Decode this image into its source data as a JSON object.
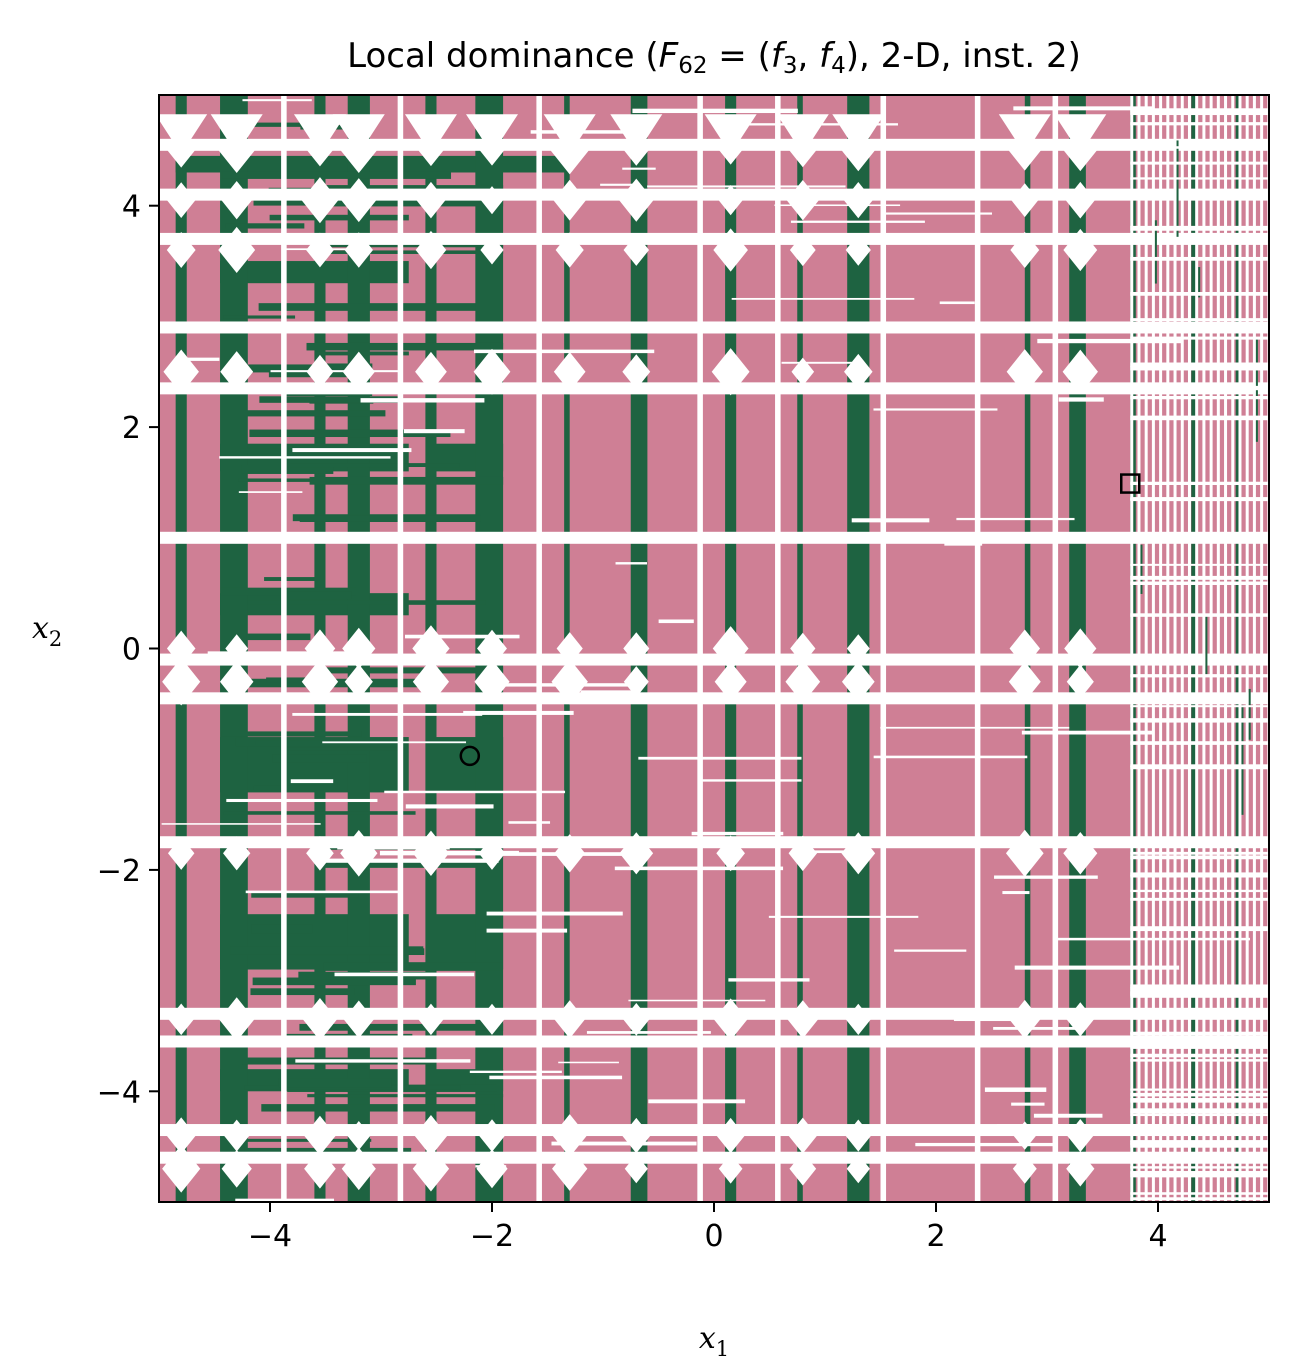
{
  "chart_data": {
    "type": "heatmap",
    "title": {
      "prefix": "Local dominance (",
      "F": "F",
      "F_sub": "62",
      "eq": " = (",
      "f1": "f",
      "f1_sub": "3",
      "comma": ", ",
      "f2": "f",
      "f2_sub": "4",
      "suffix": "), 2-D, inst. 2)"
    },
    "xlabel": {
      "main": "x",
      "sub": "1"
    },
    "ylabel": {
      "main": "x",
      "sub": "2"
    },
    "xlim": [
      -5,
      5
    ],
    "ylim": [
      -5,
      5
    ],
    "xticks": [
      {
        "value": -4,
        "label": "−4"
      },
      {
        "value": -2,
        "label": "−2"
      },
      {
        "value": 0,
        "label": "0"
      },
      {
        "value": 2,
        "label": "2"
      },
      {
        "value": 4,
        "label": "4"
      }
    ],
    "yticks": [
      {
        "value": -4,
        "label": "−4"
      },
      {
        "value": -2,
        "label": "−2"
      },
      {
        "value": 0,
        "label": "0"
      },
      {
        "value": 2,
        "label": "2"
      },
      {
        "value": 4,
        "label": "4"
      }
    ],
    "colors": {
      "background_region": "#cf7f95",
      "local_optimum_region": "#1e6341",
      "gap": "#ffffff",
      "frame": "#000000"
    },
    "green_columns": [
      [
        -4.85,
        -4.75
      ],
      [
        -4.45,
        -4.2
      ],
      [
        -3.6,
        -3.5
      ],
      [
        -3.3,
        -3.1
      ],
      [
        -2.6,
        -2.5
      ],
      [
        -2.15,
        -1.9
      ],
      [
        -1.35,
        -1.3
      ],
      [
        -0.75,
        -0.6
      ],
      [
        0.1,
        0.2
      ],
      [
        0.75,
        0.8
      ],
      [
        1.2,
        1.4
      ],
      [
        2.8,
        2.85
      ],
      [
        3.2,
        3.35
      ],
      [
        3.75,
        3.8
      ],
      [
        4.3,
        4.35
      ],
      [
        4.7,
        4.75
      ]
    ],
    "green_blocks": [
      [
        -4.45,
        -2.75,
        1.6,
        1.85
      ],
      [
        -4.45,
        -2.75,
        -1.3,
        -0.8
      ],
      [
        -4.45,
        -2.75,
        -2.9,
        -2.4
      ],
      [
        -4.45,
        -2.75,
        -4.0,
        -3.8
      ],
      [
        -4.45,
        -2.75,
        3.3,
        3.5
      ],
      [
        -4.45,
        -2.75,
        0.3,
        0.5
      ],
      [
        -2.55,
        -1.9,
        1.6,
        1.85
      ],
      [
        -2.55,
        -1.9,
        -1.3,
        -0.8
      ],
      [
        -2.55,
        -1.9,
        -2.9,
        -2.4
      ],
      [
        -4.85,
        -1.3,
        4.3,
        4.45
      ],
      [
        -2.55,
        -1.9,
        -4.0,
        -3.8
      ]
    ],
    "white_columns": [
      [
        -3.9,
        -3.85
      ],
      [
        -2.85,
        -2.8
      ],
      [
        -1.6,
        -1.55
      ],
      [
        -0.15,
        -0.1
      ],
      [
        0.55,
        0.6
      ],
      [
        1.5,
        1.55
      ],
      [
        2.35,
        2.4
      ],
      [
        3.05,
        3.1
      ]
    ],
    "white_bands": [
      4.55,
      4.1,
      3.7,
      2.9,
      2.35,
      1.0,
      -0.1,
      -0.45,
      -1.75,
      -3.3,
      -3.55,
      -4.35,
      -4.6
    ],
    "diamond_x": [
      -4.8,
      -4.3,
      -3.55,
      -3.2,
      -2.55,
      -2.0,
      -1.3,
      -0.7,
      0.15,
      0.8,
      1.3,
      2.8,
      3.3
    ],
    "diamond_y": [
      4.5,
      4.05,
      3.6,
      2.5,
      0.0,
      -0.3,
      -1.85,
      -3.35,
      -4.4,
      -4.7
    ],
    "striped_region_x": [
      3.75,
      5.0
    ],
    "markers": [
      {
        "type": "circle",
        "x": -2.2,
        "y": -0.97
      },
      {
        "type": "square",
        "x": 3.75,
        "y": 1.49
      }
    ]
  }
}
